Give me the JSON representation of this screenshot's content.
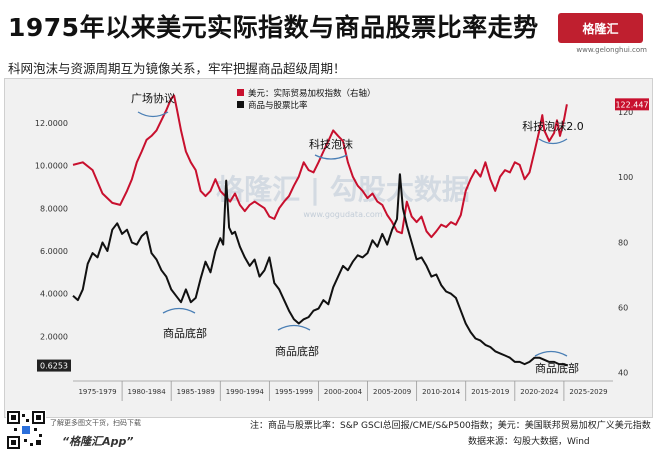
{
  "header": {
    "title": "1975年以来美元实际指数与商品股票比率走势",
    "subtitle": "科网泡沫与资源周期互为镜像关系，牢牢把握商品超级周期！",
    "logo_text": "格隆汇",
    "logo_sub": "www.gelonghui.com"
  },
  "watermark": {
    "text": "格隆汇 | 勾股大数据",
    "url": "www.gogudata.com"
  },
  "footer": {
    "note": "注：商品与股票比率：S&P GSCI总回报/CME/S&P500指数；美元：美国联邦贸易加权广义美元指数",
    "source": "数据来源：勾股大数据，Wind",
    "app_hint": "了解更多图文干货，扫码下载",
    "app_name": "“格隆汇App”"
  },
  "chart_data": {
    "type": "line",
    "legend": [
      {
        "label": "美元：实际贸易加权指数（右轴）",
        "color": "#c8102e"
      },
      {
        "label": "商品与股票比率",
        "color": "#111111"
      }
    ],
    "legend_position": "top-left",
    "x_ticks": [
      "1975-1979",
      "1980-1984",
      "1985-1989",
      "1990-1994",
      "1995-1999",
      "2000-2004",
      "2005-2009",
      "2010-2014",
      "2015-2019",
      "2020-2024",
      "2025-2029"
    ],
    "xlim": [
      1975,
      2030
    ],
    "left_axis": {
      "ticks": [
        "2.0000",
        "4.0000",
        "6.0000",
        "8.0000",
        "10.0000",
        "12.0000"
      ],
      "ylim": [
        0,
        13.5
      ]
    },
    "right_axis": {
      "ticks": [
        "40",
        "60",
        "80",
        "100",
        "120"
      ],
      "ylim": [
        38,
        126.5
      ]
    },
    "end_labels": {
      "dollar": "122.447",
      "ratio": "0.6253"
    },
    "annotations": [
      "广场协议",
      "科技泡沫",
      "科技泡沫2.0",
      "商品底部",
      "商品底部",
      "商品底部"
    ],
    "series": [
      {
        "name": "美元：实际贸易加权指数（右轴）",
        "axis": "right",
        "color": "#c8102e",
        "points": [
          [
            1975.0,
            103.8
          ],
          [
            1976.0,
            104.6
          ],
          [
            1977.0,
            102.2
          ],
          [
            1978.0,
            95.0
          ],
          [
            1979.0,
            92.1
          ],
          [
            1979.8,
            91.5
          ],
          [
            1980.5,
            95.8
          ],
          [
            1981.0,
            99.4
          ],
          [
            1981.5,
            104.6
          ],
          [
            1982.0,
            107.9
          ],
          [
            1982.5,
            111.5
          ],
          [
            1983.0,
            112.7
          ],
          [
            1983.5,
            114.4
          ],
          [
            1984.0,
            117.5
          ],
          [
            1984.5,
            120.6
          ],
          [
            1985.0,
            124.2
          ],
          [
            1985.3,
            125.1
          ],
          [
            1985.6,
            120.6
          ],
          [
            1986.0,
            114.4
          ],
          [
            1986.5,
            107.9
          ],
          [
            1987.0,
            104.6
          ],
          [
            1987.5,
            102.2
          ],
          [
            1988.0,
            95.8
          ],
          [
            1988.5,
            94.2
          ],
          [
            1989.0,
            95.8
          ],
          [
            1989.5,
            99.4
          ],
          [
            1990.0,
            95.8
          ],
          [
            1990.5,
            94.2
          ],
          [
            1991.0,
            92.5
          ],
          [
            1991.5,
            95.0
          ],
          [
            1992.0,
            91.5
          ],
          [
            1992.5,
            89.6
          ],
          [
            1993.0,
            91.5
          ],
          [
            1993.5,
            92.5
          ],
          [
            1994.0,
            91.5
          ],
          [
            1994.5,
            90.5
          ],
          [
            1995.0,
            87.9
          ],
          [
            1995.5,
            87.2
          ],
          [
            1996.0,
            90.5
          ],
          [
            1996.5,
            92.5
          ],
          [
            1997.0,
            94.2
          ],
          [
            1997.5,
            97.4
          ],
          [
            1998.0,
            100.2
          ],
          [
            1998.5,
            104.6
          ],
          [
            1999.0,
            102.2
          ],
          [
            1999.5,
            101.5
          ],
          [
            2000.0,
            104.6
          ],
          [
            2000.5,
            107.9
          ],
          [
            2001.0,
            111.1
          ],
          [
            2001.5,
            114.4
          ],
          [
            2002.0,
            112.7
          ],
          [
            2002.5,
            111.1
          ],
          [
            2003.0,
            104.6
          ],
          [
            2003.5,
            100.2
          ],
          [
            2004.0,
            97.4
          ],
          [
            2004.5,
            95.8
          ],
          [
            2005.0,
            93.6
          ],
          [
            2005.5,
            95.0
          ],
          [
            2006.0,
            92.5
          ],
          [
            2006.5,
            91.5
          ],
          [
            2007.0,
            88.4
          ],
          [
            2007.5,
            86.2
          ],
          [
            2008.0,
            83.4
          ],
          [
            2008.5,
            82.8
          ],
          [
            2009.0,
            92.5
          ],
          [
            2009.5,
            87.9
          ],
          [
            2010.0,
            86.2
          ],
          [
            2010.5,
            87.9
          ],
          [
            2011.0,
            83.4
          ],
          [
            2011.5,
            81.6
          ],
          [
            2012.0,
            83.4
          ],
          [
            2012.5,
            85.4
          ],
          [
            2013.0,
            84.7
          ],
          [
            2013.5,
            86.2
          ],
          [
            2014.0,
            85.4
          ],
          [
            2014.5,
            88.4
          ],
          [
            2015.0,
            95.8
          ],
          [
            2015.5,
            99.4
          ],
          [
            2016.0,
            102.2
          ],
          [
            2016.5,
            100.2
          ],
          [
            2017.0,
            104.6
          ],
          [
            2017.5,
            99.4
          ],
          [
            2018.0,
            95.8
          ],
          [
            2018.5,
            100.2
          ],
          [
            2019.0,
            102.2
          ],
          [
            2019.5,
            101.5
          ],
          [
            2020.0,
            104.6
          ],
          [
            2020.5,
            103.8
          ],
          [
            2021.0,
            99.4
          ],
          [
            2021.5,
            101.5
          ],
          [
            2022.0,
            107.9
          ],
          [
            2022.5,
            114.4
          ],
          [
            2022.8,
            119.1
          ],
          [
            2023.0,
            114.4
          ],
          [
            2023.5,
            111.1
          ],
          [
            2024.0,
            113.6
          ],
          [
            2024.3,
            117.5
          ],
          [
            2024.6,
            112.7
          ],
          [
            2025.0,
            117.5
          ],
          [
            2025.3,
            122.4
          ]
        ]
      },
      {
        "name": "商品与股票比率",
        "axis": "left",
        "color": "#111111",
        "points": [
          [
            1975.0,
            3.9
          ],
          [
            1975.5,
            3.7
          ],
          [
            1976.0,
            4.2
          ],
          [
            1976.5,
            5.4
          ],
          [
            1977.0,
            5.9
          ],
          [
            1977.5,
            5.7
          ],
          [
            1978.0,
            6.4
          ],
          [
            1978.5,
            6.0
          ],
          [
            1979.0,
            7.0
          ],
          [
            1979.5,
            7.3
          ],
          [
            1980.0,
            6.8
          ],
          [
            1980.5,
            7.0
          ],
          [
            1981.0,
            6.4
          ],
          [
            1981.5,
            6.3
          ],
          [
            1982.0,
            6.7
          ],
          [
            1982.5,
            6.9
          ],
          [
            1983.0,
            5.9
          ],
          [
            1983.5,
            5.6
          ],
          [
            1984.0,
            5.1
          ],
          [
            1984.5,
            4.8
          ],
          [
            1985.0,
            4.2
          ],
          [
            1985.5,
            3.9
          ],
          [
            1986.0,
            3.6
          ],
          [
            1986.5,
            4.2
          ],
          [
            1987.0,
            3.6
          ],
          [
            1987.5,
            3.8
          ],
          [
            1988.0,
            4.7
          ],
          [
            1988.5,
            5.5
          ],
          [
            1989.0,
            5.0
          ],
          [
            1989.5,
            6.0
          ],
          [
            1990.0,
            6.6
          ],
          [
            1990.3,
            6.3
          ],
          [
            1990.6,
            9.3
          ],
          [
            1990.9,
            7.1
          ],
          [
            1991.2,
            6.8
          ],
          [
            1991.5,
            6.9
          ],
          [
            1992.0,
            6.2
          ],
          [
            1992.5,
            5.7
          ],
          [
            1993.0,
            5.3
          ],
          [
            1993.5,
            5.6
          ],
          [
            1994.0,
            4.8
          ],
          [
            1994.5,
            5.1
          ],
          [
            1995.0,
            5.7
          ],
          [
            1995.5,
            4.5
          ],
          [
            1996.0,
            4.2
          ],
          [
            1996.5,
            3.7
          ],
          [
            1997.0,
            3.2
          ],
          [
            1997.5,
            2.8
          ],
          [
            1998.0,
            2.6
          ],
          [
            1998.5,
            2.8
          ],
          [
            1999.0,
            2.9
          ],
          [
            1999.5,
            3.2
          ],
          [
            2000.0,
            3.3
          ],
          [
            2000.5,
            3.7
          ],
          [
            2001.0,
            3.5
          ],
          [
            2001.5,
            4.3
          ],
          [
            2002.0,
            4.8
          ],
          [
            2002.5,
            5.3
          ],
          [
            2003.0,
            5.1
          ],
          [
            2003.5,
            5.5
          ],
          [
            2004.0,
            5.8
          ],
          [
            2004.5,
            5.7
          ],
          [
            2005.0,
            5.9
          ],
          [
            2005.5,
            6.5
          ],
          [
            2006.0,
            6.2
          ],
          [
            2006.5,
            6.8
          ],
          [
            2007.0,
            6.3
          ],
          [
            2007.5,
            7.0
          ],
          [
            2008.0,
            7.5
          ],
          [
            2008.3,
            9.6
          ],
          [
            2008.6,
            8.0
          ],
          [
            2009.0,
            7.2
          ],
          [
            2009.5,
            6.4
          ],
          [
            2010.0,
            5.6
          ],
          [
            2010.5,
            5.7
          ],
          [
            2011.0,
            5.3
          ],
          [
            2011.5,
            4.8
          ],
          [
            2012.0,
            4.9
          ],
          [
            2012.5,
            4.4
          ],
          [
            2013.0,
            4.1
          ],
          [
            2013.5,
            4.0
          ],
          [
            2014.0,
            3.8
          ],
          [
            2014.5,
            3.2
          ],
          [
            2015.0,
            2.6
          ],
          [
            2015.5,
            2.2
          ],
          [
            2016.0,
            1.9
          ],
          [
            2016.5,
            1.8
          ],
          [
            2017.0,
            1.6
          ],
          [
            2017.5,
            1.5
          ],
          [
            2018.0,
            1.3
          ],
          [
            2018.5,
            1.2
          ],
          [
            2019.0,
            1.1
          ],
          [
            2019.5,
            1.0
          ],
          [
            2020.0,
            0.8
          ],
          [
            2020.5,
            0.8
          ],
          [
            2021.0,
            0.7
          ],
          [
            2021.5,
            0.8
          ],
          [
            2022.0,
            1.0
          ],
          [
            2022.5,
            1.0
          ],
          [
            2023.0,
            0.9
          ],
          [
            2023.5,
            0.8
          ],
          [
            2024.0,
            0.8
          ],
          [
            2024.5,
            0.7
          ],
          [
            2025.0,
            0.7
          ],
          [
            2025.4,
            0.63
          ]
        ]
      }
    ]
  }
}
